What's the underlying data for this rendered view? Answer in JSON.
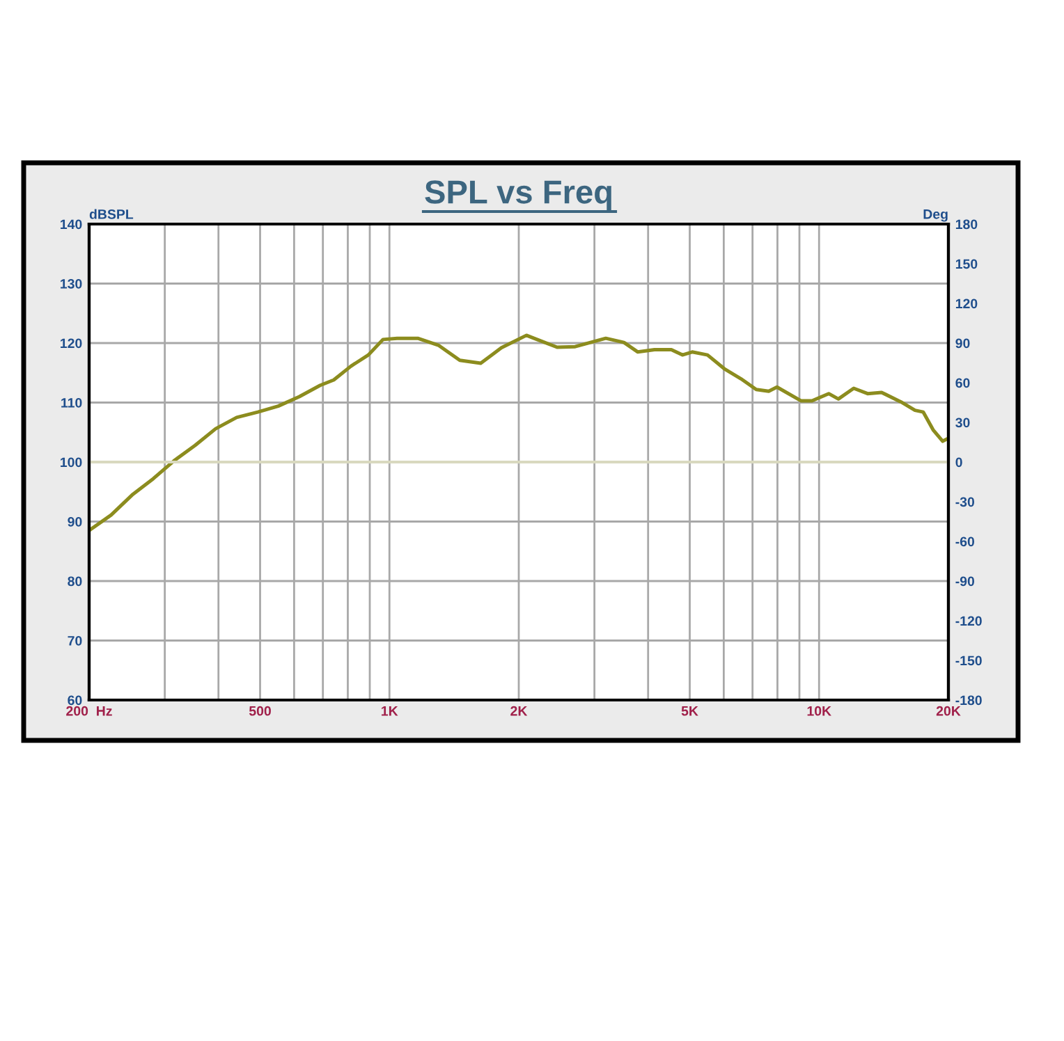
{
  "chart_data": {
    "type": "line",
    "title": "SPL vs Freq",
    "ylabel": "dBSPL",
    "y2label": "Deg",
    "log": "x",
    "grid": true,
    "xlim": [
      200,
      20000
    ],
    "xticks": [
      {
        "value": 200,
        "label": "200  Hz"
      },
      {
        "value": 300,
        "label": null
      },
      {
        "value": 400,
        "label": null
      },
      500,
      {
        "value": 600,
        "label": null
      },
      {
        "value": 700,
        "label": null
      },
      {
        "value": 800,
        "label": null
      },
      {
        "value": 900,
        "label": null
      },
      {
        "value": 1000,
        "label": "1K"
      },
      {
        "value": 2000,
        "label": "2K"
      },
      {
        "value": 3000,
        "label": null
      },
      {
        "value": 4000,
        "label": null
      },
      {
        "value": 5000,
        "label": "5K"
      },
      {
        "value": 6000,
        "label": null
      },
      {
        "value": 7000,
        "label": null
      },
      {
        "value": 8000,
        "label": null
      },
      {
        "value": 9000,
        "label": null
      },
      {
        "value": 10000,
        "label": "10K"
      },
      {
        "value": 20000,
        "label": "20K"
      }
    ],
    "ylim": [
      60,
      140
    ],
    "yticks": [
      60,
      70,
      80,
      90,
      100,
      110,
      120,
      130,
      140
    ],
    "y2lim": [
      -180,
      180
    ],
    "y2ticks": [
      -180,
      -150,
      -120,
      -90,
      -60,
      -30,
      0,
      30,
      60,
      90,
      120,
      150,
      180
    ],
    "ref_lines": [
      {
        "axis": "y2",
        "value": 0,
        "color": "#d9d9bf"
      }
    ],
    "series": [
      {
        "color": "#8c8c1e",
        "x": [
          200,
          225,
          253,
          282,
          315,
          353,
          394,
          441,
          494,
          551,
          617,
          690,
          742,
          813,
          893,
          966,
          1042,
          1164,
          1303,
          1458,
          1631,
          1822,
          2084,
          2456,
          2706,
          3188,
          3514,
          3786,
          4140,
          4530,
          4808,
          5066,
          5500,
          6014,
          6578,
          7141,
          7634,
          7980,
          9070,
          9626,
          10530,
          11090,
          12040,
          12970,
          13980,
          15520,
          16720,
          17480,
          18430,
          19400,
          20000
        ],
        "values": [
          88.5,
          91.1,
          94.6,
          97.2,
          100.2,
          102.8,
          105.6,
          107.5,
          108.4,
          109.4,
          111,
          112.9,
          113.8,
          116.1,
          118,
          120.6,
          120.8,
          120.8,
          119.6,
          117.1,
          116.6,
          119.2,
          121.3,
          119.3,
          119.4,
          120.8,
          120.1,
          118.5,
          118.9,
          118.9,
          118,
          118.5,
          118,
          115.7,
          114,
          112.2,
          111.9,
          112.6,
          110.3,
          110.3,
          111.5,
          110.6,
          112.4,
          111.5,
          111.7,
          110.1,
          108.7,
          108.4,
          105.4,
          103.5,
          104
        ]
      }
    ]
  }
}
